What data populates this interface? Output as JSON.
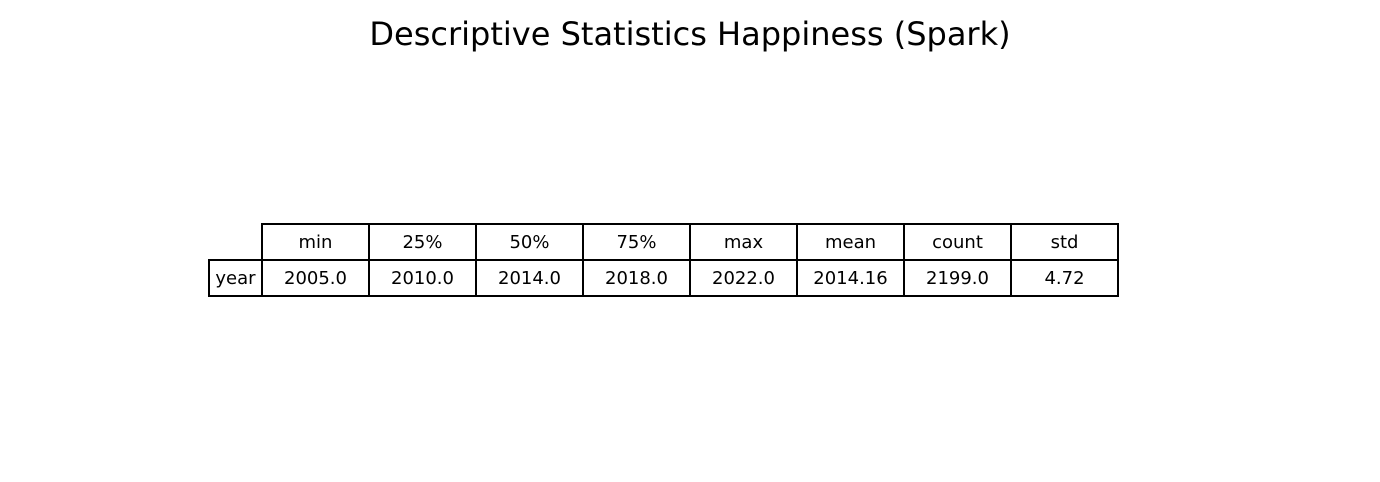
{
  "title": "Descriptive Statistics Happiness (Spark)",
  "table": {
    "columns": [
      "min",
      "25%",
      "50%",
      "75%",
      "max",
      "mean",
      "count",
      "std"
    ],
    "rows": [
      {
        "label": "year",
        "values": [
          "2005.0",
          "2010.0",
          "2014.0",
          "2018.0",
          "2022.0",
          "2014.16",
          "2199.0",
          "4.72"
        ]
      }
    ]
  },
  "chart_data": {
    "type": "table",
    "title": "Descriptive Statistics Happiness (Spark)",
    "columns": [
      "min",
      "25%",
      "50%",
      "75%",
      "max",
      "mean",
      "count",
      "std"
    ],
    "rows": [
      {
        "label": "year",
        "values": [
          2005.0,
          2010.0,
          2014.0,
          2018.0,
          2022.0,
          2014.16,
          2199.0,
          4.72
        ]
      }
    ]
  }
}
